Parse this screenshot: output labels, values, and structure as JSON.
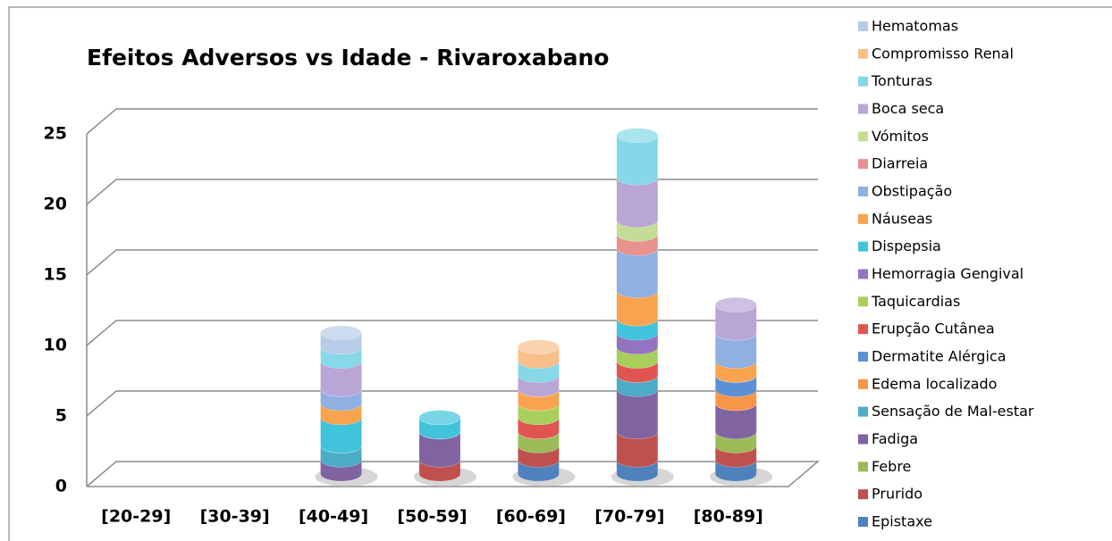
{
  "chart_data": {
    "type": "bar3d-stacked",
    "title": "Efeitos Adversos vs Idade - Rivaroxabano",
    "categories": [
      "[20-29]",
      "[30-39]",
      "[40-49]",
      "[50-59]",
      "[60-69]",
      "[70-79]",
      "[80-89]"
    ],
    "ylim": [
      0,
      25
    ],
    "yticks": [
      0,
      5,
      10,
      15,
      20,
      25
    ],
    "grid": true,
    "legend": "right",
    "series": [
      {
        "name": "Epistaxe",
        "color": "#4f81bd",
        "values": [
          0,
          0,
          0,
          0,
          1,
          1,
          1
        ]
      },
      {
        "name": "Prurido",
        "color": "#c0504d",
        "values": [
          0,
          0,
          0,
          1,
          1,
          2,
          1
        ]
      },
      {
        "name": "Febre",
        "color": "#9bbb59",
        "values": [
          0,
          0,
          0,
          0,
          1,
          0,
          1
        ]
      },
      {
        "name": "Fadiga",
        "color": "#8064a2",
        "values": [
          0,
          0,
          1,
          2,
          0,
          3,
          2
        ]
      },
      {
        "name": "Sensação de Mal-estar",
        "color": "#4bacc6",
        "values": [
          0,
          0,
          1,
          0,
          0,
          1,
          0
        ]
      },
      {
        "name": "Edema localizado",
        "color": "#f79646",
        "values": [
          0,
          0,
          0,
          0,
          0,
          0,
          1
        ]
      },
      {
        "name": "Dermatite Alérgica",
        "color": "#5b8fd6",
        "values": [
          0,
          0,
          0,
          0,
          0,
          0,
          1
        ]
      },
      {
        "name": "Erupção Cutânea",
        "color": "#e05550",
        "values": [
          0,
          0,
          0,
          0,
          1,
          1,
          0
        ]
      },
      {
        "name": "Taquicardias",
        "color": "#a8cf5c",
        "values": [
          0,
          0,
          0,
          0,
          1,
          1,
          0
        ]
      },
      {
        "name": "Hemorragia Gengival",
        "color": "#9673c0",
        "values": [
          0,
          0,
          0,
          0,
          0,
          1,
          0
        ]
      },
      {
        "name": "Dispepsia",
        "color": "#3fc4dc",
        "values": [
          0,
          0,
          2,
          1,
          0,
          1,
          0
        ]
      },
      {
        "name": "Náuseas",
        "color": "#f9a34f",
        "values": [
          0,
          0,
          1,
          0,
          1,
          2,
          1
        ]
      },
      {
        "name": "Obstipação",
        "color": "#8fb0e0",
        "values": [
          0,
          0,
          1,
          0,
          0,
          3,
          2
        ]
      },
      {
        "name": "Diarreia",
        "color": "#e8918f",
        "values": [
          0,
          0,
          0,
          0,
          0,
          1,
          0
        ]
      },
      {
        "name": "Vómitos",
        "color": "#c4dd96",
        "values": [
          0,
          0,
          0,
          0,
          0,
          1,
          0
        ]
      },
      {
        "name": "Boca seca",
        "color": "#b9a5d6",
        "values": [
          0,
          0,
          2,
          0,
          1,
          3,
          2
        ]
      },
      {
        "name": "Tonturas",
        "color": "#86d8e8",
        "values": [
          0,
          0,
          1,
          0,
          1,
          3,
          0
        ]
      },
      {
        "name": "Compromisso Renal",
        "color": "#f8bf8a",
        "values": [
          0,
          0,
          0,
          0,
          1,
          0,
          0
        ]
      },
      {
        "name": "Hematomas",
        "color": "#b8cce8",
        "values": [
          0,
          0,
          1,
          0,
          0,
          0,
          0
        ]
      }
    ]
  }
}
